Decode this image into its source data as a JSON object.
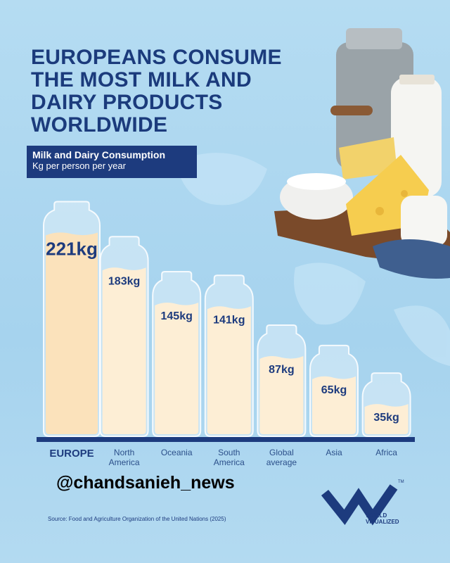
{
  "chart_data": {
    "type": "bar",
    "title": "EUROPEANS CONSUME THE MOST MILK AND DAIRY PRODUCTS WORLDWIDE",
    "subtitle": "Milk and Dairy Consumption",
    "unit_note": "Kg per person per year",
    "categories": [
      "EUROPE",
      "North America",
      "Oceania",
      "South America",
      "Global average",
      "Asia",
      "Africa"
    ],
    "values": [
      221,
      183,
      145,
      141,
      87,
      65,
      35
    ],
    "value_labels": [
      "221kg",
      "183kg",
      "145kg",
      "141kg",
      "87kg",
      "65kg",
      "35kg"
    ],
    "color": "#fdeed5",
    "highlight_color": "#fbe2bb",
    "source": "Source: Food and Agriculture Organization of the United Nations (2025)",
    "watermark": "@chandsanieh_news",
    "logo": "WORLD VISUALIZED",
    "logo_mark": "TM"
  }
}
